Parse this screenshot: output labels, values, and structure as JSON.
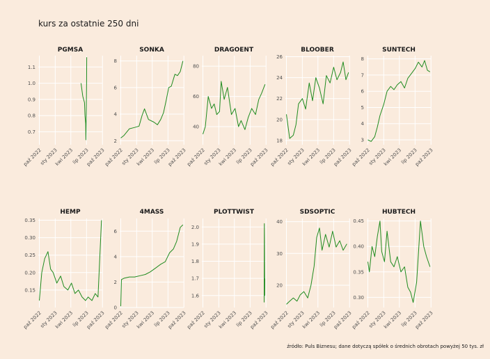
{
  "page": {
    "title": "kurs za ostatnie 250 dni",
    "caption": "źródło: Puls Biznesu; dane dotyczą spółek o średnich obrotach powyżej 50 tys. zł"
  },
  "colors": {
    "background": "#faebdd",
    "grid": "#ffffff",
    "line": "#1f8b1f",
    "text": "#1a1a1a",
    "axis_text": "#4d4d4d"
  },
  "chart_data": [
    {
      "type": "line",
      "title": "PGMSA",
      "x": [
        "2023-05-30",
        "2023-06-09",
        "2023-06-19",
        "2023-06-22",
        "2023-06-26",
        "2023-06-27",
        "2023-06-29",
        "2023-07-01",
        "2023-07-02"
      ],
      "y": [
        1.0,
        0.92,
        0.88,
        0.8,
        0.75,
        0.65,
        0.8,
        1.0,
        1.16
      ],
      "xticks": [
        "paź 2022",
        "sty 2023",
        "kwi 2023",
        "lip 2023",
        "paź 2023"
      ],
      "ylim": [
        0.62,
        1.17
      ],
      "yticks": [
        0.7,
        0.8,
        0.9,
        1.0,
        1.1
      ],
      "ytick_labels": [
        "0.7",
        "0.8",
        "0.9",
        "1.0",
        "1.1"
      ]
    },
    {
      "type": "line",
      "title": "SONKA",
      "x": [
        "2022-10-01",
        "2022-10-20",
        "2022-11-20",
        "2022-12-20",
        "2023-01-15",
        "2023-02-01",
        "2023-02-15",
        "2023-03-10",
        "2023-04-10",
        "2023-05-01",
        "2023-05-20",
        "2023-06-05",
        "2023-06-20",
        "2023-07-05",
        "2023-07-20",
        "2023-08-10",
        "2023-08-25",
        "2023-09-10",
        "2023-09-25"
      ],
      "y": [
        2.2,
        2.4,
        2.9,
        3.0,
        3.1,
        3.9,
        4.4,
        3.6,
        3.4,
        3.2,
        3.6,
        4.1,
        5.0,
        6.0,
        6.1,
        7.0,
        6.9,
        7.2,
        8.0
      ],
      "xticks": [
        "paź 2022",
        "sty 2023",
        "kwi 2023",
        "lip 2023",
        "paź 2023"
      ],
      "ylim": [
        1.7,
        8.4
      ],
      "yticks": [
        2,
        4,
        6,
        8
      ],
      "ytick_labels": [
        "2",
        "4",
        "6",
        "8"
      ]
    },
    {
      "type": "line",
      "title": "DRAGOENT",
      "x": [
        "2022-10-01",
        "2022-10-15",
        "2022-11-01",
        "2022-11-20",
        "2022-12-05",
        "2022-12-20",
        "2023-01-05",
        "2023-01-15",
        "2023-02-01",
        "2023-02-20",
        "2023-03-15",
        "2023-04-05",
        "2023-04-25",
        "2023-05-10",
        "2023-06-01",
        "2023-06-20",
        "2023-07-10",
        "2023-08-01",
        "2023-08-20",
        "2023-09-05",
        "2023-09-25"
      ],
      "y": [
        35,
        40,
        60,
        52,
        55,
        48,
        50,
        70,
        58,
        66,
        48,
        52,
        40,
        44,
        38,
        46,
        52,
        48,
        58,
        62,
        68
      ],
      "xticks": [
        "paź 2022",
        "sty 2023",
        "kwi 2023",
        "lip 2023",
        "paź 2023"
      ],
      "ylim": [
        28,
        87
      ],
      "yticks": [
        40,
        60,
        80
      ],
      "ytick_labels": [
        "40",
        "60",
        "80"
      ]
    },
    {
      "type": "line",
      "title": "BLOOBER",
      "x": [
        "2022-10-01",
        "2022-10-20",
        "2022-11-10",
        "2022-11-25",
        "2022-12-10",
        "2023-01-01",
        "2023-01-20",
        "2023-02-10",
        "2023-03-01",
        "2023-03-20",
        "2023-04-10",
        "2023-05-01",
        "2023-05-20",
        "2023-06-10",
        "2023-07-01",
        "2023-07-20",
        "2023-08-10",
        "2023-08-25",
        "2023-09-10",
        "2023-09-25"
      ],
      "y": [
        20.5,
        18.2,
        18.5,
        19.5,
        21.5,
        22.0,
        21.0,
        23.5,
        21.8,
        24.0,
        23.0,
        21.5,
        24.2,
        23.5,
        25.0,
        23.8,
        24.5,
        25.5,
        23.8,
        24.5
      ],
      "xticks": [
        "paź 2022",
        "sty 2023",
        "kwi 2023",
        "lip 2023",
        "paź 2023"
      ],
      "ylim": [
        17.6,
        26.1
      ],
      "yticks": [
        18,
        20,
        22,
        24,
        26
      ],
      "ytick_labels": [
        "18",
        "20",
        "22",
        "24",
        "26"
      ]
    },
    {
      "type": "line",
      "title": "SUNTECH",
      "x": [
        "2022-10-01",
        "2022-10-20",
        "2022-11-10",
        "2022-11-25",
        "2022-12-10",
        "2023-01-01",
        "2023-01-20",
        "2023-02-10",
        "2023-03-01",
        "2023-03-20",
        "2023-04-10",
        "2023-05-01",
        "2023-05-20",
        "2023-06-10",
        "2023-07-01",
        "2023-07-20",
        "2023-08-10",
        "2023-08-25",
        "2023-09-10",
        "2023-09-25"
      ],
      "y": [
        3.0,
        2.9,
        3.2,
        3.8,
        4.5,
        5.2,
        6.0,
        6.3,
        6.1,
        6.4,
        6.6,
        6.2,
        6.8,
        7.1,
        7.4,
        7.8,
        7.5,
        7.9,
        7.3,
        7.2
      ],
      "xticks": [
        "paź 2022",
        "sty 2023",
        "kwi 2023",
        "lip 2023",
        "paź 2023"
      ],
      "ylim": [
        2.7,
        8.2
      ],
      "yticks": [
        3,
        4,
        5,
        6,
        7,
        8
      ],
      "ytick_labels": [
        "3",
        "4",
        "5",
        "6",
        "7",
        "8"
      ]
    },
    {
      "type": "line",
      "title": "HEMP",
      "x": [
        "2022-10-01",
        "2022-10-15",
        "2022-11-01",
        "2022-11-20",
        "2022-12-05",
        "2022-12-20",
        "2023-01-10",
        "2023-02-01",
        "2023-02-20",
        "2023-03-15",
        "2023-04-05",
        "2023-04-25",
        "2023-05-15",
        "2023-06-05",
        "2023-06-25",
        "2023-07-10",
        "2023-08-01",
        "2023-08-20",
        "2023-09-05",
        "2023-09-15",
        "2023-09-25"
      ],
      "y": [
        0.12,
        0.2,
        0.24,
        0.26,
        0.21,
        0.2,
        0.17,
        0.19,
        0.16,
        0.15,
        0.17,
        0.14,
        0.15,
        0.13,
        0.12,
        0.13,
        0.12,
        0.14,
        0.13,
        0.24,
        0.35
      ],
      "xticks": [
        "paź 2022",
        "sty 2023",
        "kwi 2023",
        "lip 2023",
        "paź 2023"
      ],
      "ylim": [
        0.1,
        0.355
      ],
      "yticks": [
        0.15,
        0.2,
        0.25,
        0.3,
        0.35
      ],
      "ytick_labels": [
        "0.15",
        "0.20",
        "0.25",
        "0.30",
        "0.35"
      ]
    },
    {
      "type": "line",
      "title": "4MASS",
      "x": [
        "2022-10-01",
        "2022-10-05",
        "2022-10-20",
        "2022-11-20",
        "2022-12-20",
        "2023-01-20",
        "2023-02-20",
        "2023-03-20",
        "2023-04-20",
        "2023-05-20",
        "2023-06-15",
        "2023-07-10",
        "2023-08-01",
        "2023-08-20",
        "2023-09-10",
        "2023-09-25"
      ],
      "y": [
        0.1,
        2.2,
        2.3,
        2.4,
        2.4,
        2.5,
        2.6,
        2.8,
        3.1,
        3.4,
        3.6,
        4.3,
        4.6,
        5.2,
        6.3,
        6.5
      ],
      "xticks": [
        "paź 2022",
        "sty 2023",
        "kwi 2023",
        "lip 2023",
        "paź 2023"
      ],
      "ylim": [
        0,
        7.0
      ],
      "yticks": [
        0,
        2,
        4,
        6
      ],
      "ytick_labels": [
        "0",
        "2",
        "4",
        "6"
      ]
    },
    {
      "type": "line",
      "title": "PLOTTWIST",
      "x": [
        "2023-09-20",
        "2023-09-21",
        "2023-09-22",
        "2023-09-23",
        "2023-09-24"
      ],
      "y": [
        1.56,
        2.02,
        1.92,
        1.6,
        1.7
      ],
      "xticks": [
        "paź 2022",
        "sty 2023",
        "kwi 2023",
        "lip 2023",
        "paź 2023"
      ],
      "ylim": [
        1.53,
        2.05
      ],
      "yticks": [
        1.6,
        1.7,
        1.8,
        1.9,
        2.0
      ],
      "ytick_labels": [
        "1.6",
        "1.7",
        "1.8",
        "1.9",
        "2.0"
      ]
    },
    {
      "type": "line",
      "title": "SDSOPTIC",
      "x": [
        "2022-10-01",
        "2022-10-20",
        "2022-11-10",
        "2022-12-01",
        "2022-12-20",
        "2023-01-10",
        "2023-02-01",
        "2023-02-20",
        "2023-03-10",
        "2023-03-25",
        "2023-04-10",
        "2023-04-25",
        "2023-05-15",
        "2023-06-05",
        "2023-06-25",
        "2023-07-15",
        "2023-08-05",
        "2023-08-25",
        "2023-09-15"
      ],
      "y": [
        14,
        15,
        16,
        15,
        17,
        18,
        16,
        20,
        26,
        35,
        38,
        31,
        36,
        32,
        37,
        32,
        34,
        31,
        33
      ],
      "xticks": [
        "paź 2022",
        "sty 2023",
        "kwi 2023",
        "lip 2023",
        "paź 2023"
      ],
      "ylim": [
        13,
        41
      ],
      "yticks": [
        20,
        30,
        40
      ],
      "ytick_labels": [
        "20",
        "30",
        "40"
      ]
    },
    {
      "type": "line",
      "title": "HUBTECH",
      "x": [
        "2022-10-01",
        "2022-10-10",
        "2022-10-25",
        "2022-11-10",
        "2022-11-25",
        "2022-12-10",
        "2022-12-20",
        "2023-01-05",
        "2023-01-20",
        "2023-02-10",
        "2023-03-01",
        "2023-03-20",
        "2023-04-10",
        "2023-05-01",
        "2023-05-20",
        "2023-06-05",
        "2023-06-20",
        "2023-07-10",
        "2023-08-01",
        "2023-08-20",
        "2023-09-05",
        "2023-09-25"
      ],
      "y": [
        0.37,
        0.35,
        0.4,
        0.38,
        0.42,
        0.45,
        0.39,
        0.37,
        0.43,
        0.37,
        0.36,
        0.38,
        0.35,
        0.36,
        0.32,
        0.31,
        0.29,
        0.33,
        0.45,
        0.4,
        0.38,
        0.36
      ],
      "xticks": [
        "paź 2022",
        "sty 2023",
        "kwi 2023",
        "lip 2023",
        "paź 2023"
      ],
      "ylim": [
        0.28,
        0.455
      ],
      "yticks": [
        0.3,
        0.35,
        0.4,
        0.45
      ],
      "ytick_labels": [
        "0.30",
        "0.35",
        "0.40",
        "0.45"
      ]
    }
  ]
}
